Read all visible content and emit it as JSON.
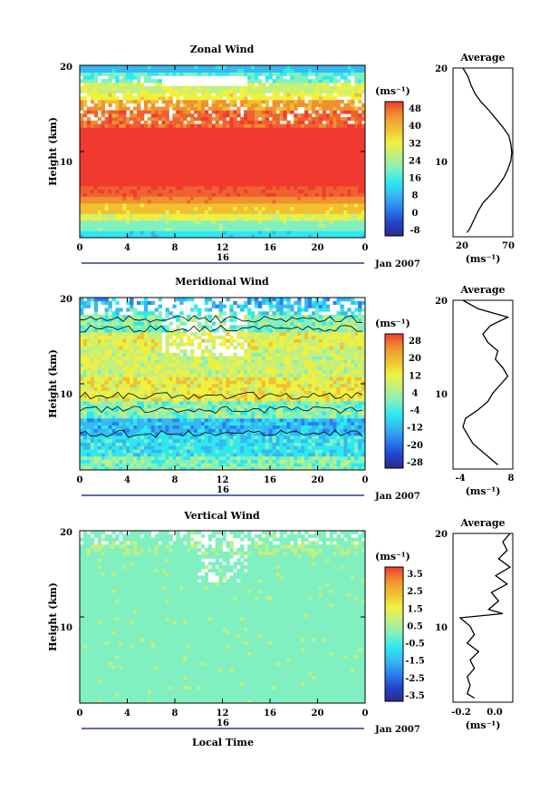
{
  "figure": {
    "date_label": "Jan 2007",
    "day_label": "16",
    "xlabel": "Local Time"
  },
  "chart_data": [
    {
      "name": "zonal",
      "type": "heatmap",
      "title": "Zonal Wind",
      "ylabel": "Height (km)",
      "unit": "(ms⁻¹)",
      "xlim": [
        0,
        24
      ],
      "ylim": [
        0,
        20
      ],
      "xticks": [
        "0",
        "4",
        "8",
        "12",
        "16",
        "20",
        "0"
      ],
      "yticks": [
        "10",
        "20"
      ],
      "colorbar": {
        "range": [
          -8,
          52
        ],
        "ticks": [
          "48",
          "40",
          "32",
          "24",
          "16",
          "8",
          "0",
          "-8"
        ]
      },
      "avg_panel": {
        "title": "Average",
        "xticks": [
          "20",
          "70"
        ],
        "yticks": [
          "10",
          "20"
        ],
        "xlim": [
          12,
          72
        ],
        "xlabel": "(ms⁻¹)",
        "profile": [
          [
            0.5,
            26
          ],
          [
            1,
            29
          ],
          [
            2,
            33
          ],
          [
            3,
            37
          ],
          [
            4,
            42
          ],
          [
            5,
            50
          ],
          [
            6,
            57
          ],
          [
            7,
            63
          ],
          [
            8,
            67
          ],
          [
            9,
            70
          ],
          [
            10,
            71
          ],
          [
            11,
            70
          ],
          [
            12,
            68
          ],
          [
            13,
            62
          ],
          [
            14,
            55
          ],
          [
            15,
            48
          ],
          [
            16,
            40
          ],
          [
            17,
            34
          ],
          [
            18,
            30
          ],
          [
            19,
            27
          ],
          [
            20,
            22
          ]
        ]
      }
    },
    {
      "name": "meridional",
      "type": "heatmap",
      "title": "Meridional Wind",
      "ylabel": "Height (km)",
      "unit": "(ms⁻¹)",
      "xlim": [
        0,
        24
      ],
      "ylim": [
        0,
        20
      ],
      "xticks": [
        "0",
        "4",
        "8",
        "12",
        "16",
        "20",
        "0"
      ],
      "yticks": [
        "10",
        "20"
      ],
      "colorbar": {
        "range": [
          -30,
          30
        ],
        "ticks": [
          "28",
          "20",
          "12",
          "4",
          "-4",
          "-12",
          "-20",
          "-28"
        ]
      },
      "avg_panel": {
        "title": "Average",
        "xticks": [
          "-4",
          "8"
        ],
        "yticks": [
          "10",
          "20"
        ],
        "xlim": [
          -4,
          8
        ],
        "xlabel": "(ms⁻¹)",
        "profile": [
          [
            0.5,
            5
          ],
          [
            1,
            4
          ],
          [
            2,
            2
          ],
          [
            3,
            0
          ],
          [
            4,
            -1
          ],
          [
            5,
            -2
          ],
          [
            6,
            -1.5
          ],
          [
            7,
            1
          ],
          [
            8,
            3
          ],
          [
            9,
            4
          ],
          [
            10,
            5.5
          ],
          [
            11,
            7
          ],
          [
            12,
            6
          ],
          [
            13,
            4.5
          ],
          [
            14,
            5
          ],
          [
            15,
            3
          ],
          [
            16,
            2
          ],
          [
            17,
            3.5
          ],
          [
            18,
            7
          ],
          [
            19,
            1
          ],
          [
            20,
            -2
          ]
        ]
      }
    },
    {
      "name": "vertical",
      "type": "heatmap",
      "title": "Vertical Wind",
      "ylabel": "Height (km)",
      "unit": "(ms⁻¹)",
      "xlim": [
        0,
        24
      ],
      "ylim": [
        0,
        20
      ],
      "xticks": [
        "0",
        "4",
        "8",
        "12",
        "16",
        "20",
        "0"
      ],
      "yticks": [
        "10",
        "20"
      ],
      "colorbar": {
        "range": [
          -4,
          4
        ],
        "ticks": [
          "3.5",
          "2.5",
          "1.5",
          "0.5",
          "-0.5",
          "-1.5",
          "-2.5",
          "-3.5"
        ]
      },
      "avg_panel": {
        "title": "Average",
        "xticks": [
          "-0.2",
          "0.0"
        ],
        "yticks": [
          "10",
          "20"
        ],
        "xlim": [
          -0.3,
          0.12
        ],
        "xlabel": "(ms⁻¹)",
        "profile": [
          [
            0.5,
            -0.15
          ],
          [
            1,
            -0.2
          ],
          [
            2,
            -0.18
          ],
          [
            3,
            -0.2
          ],
          [
            4,
            -0.15
          ],
          [
            5,
            -0.18
          ],
          [
            6,
            -0.12
          ],
          [
            7,
            -0.2
          ],
          [
            8,
            -0.15
          ],
          [
            9,
            -0.18
          ],
          [
            10,
            -0.25
          ],
          [
            10.5,
            0.05
          ],
          [
            11,
            -0.05
          ],
          [
            12,
            0.02
          ],
          [
            13,
            -0.03
          ],
          [
            14,
            0.08
          ],
          [
            15,
            0.0
          ],
          [
            16,
            0.1
          ],
          [
            17,
            0.02
          ],
          [
            18,
            0.08
          ],
          [
            19,
            0.05
          ],
          [
            20,
            0.1
          ]
        ]
      }
    }
  ],
  "palette": [
    "#2b2b8c",
    "#2244cc",
    "#2a7ff0",
    "#36b8f0",
    "#2ee8f0",
    "#80f0c0",
    "#c0f080",
    "#f0f040",
    "#f0c030",
    "#f09030",
    "#f06030",
    "#f03a30"
  ]
}
